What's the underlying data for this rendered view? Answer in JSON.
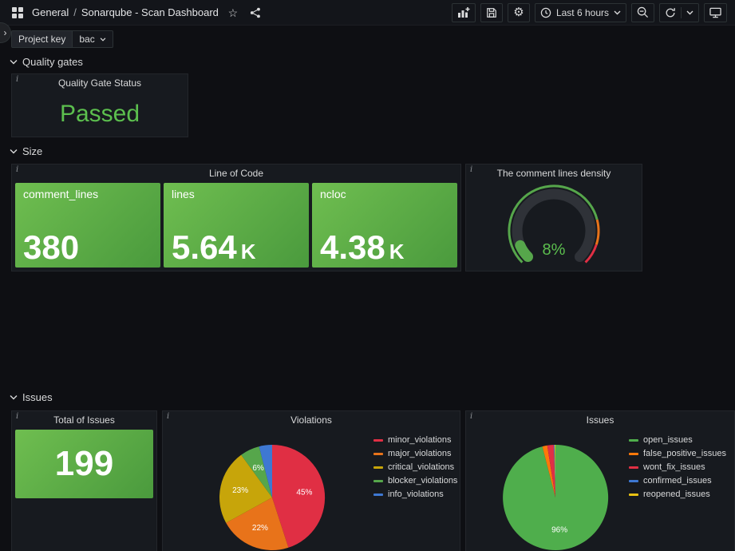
{
  "nav": {
    "folder": "General",
    "separator": "/",
    "title": "Sonarqube - Scan Dashboard",
    "time_range_label": "Last 6 hours"
  },
  "icons": {
    "star": "☆",
    "gear": "⚙",
    "sidebar_toggle": "›",
    "info": "i"
  },
  "variables": {
    "label": "Project key",
    "value": "bac"
  },
  "sections": {
    "quality_gates": "Quality gates",
    "size": "Size",
    "issues": "Issues"
  },
  "colors": {
    "stat_gradient": [
      "#6fbe50",
      "#4a9a3d"
    ],
    "green_text": "#5CBF4E"
  },
  "panels": {
    "quality_gate": {
      "title": "Quality Gate Status",
      "value": "Passed",
      "value_style": "color:#5CBF4E"
    },
    "line_of_code": {
      "title": "Line of Code",
      "stats": [
        {
          "label": "comment_lines",
          "value": "380",
          "suffix": ""
        },
        {
          "label": "lines",
          "value": "5.64",
          "suffix": "K"
        },
        {
          "label": "ncloc",
          "value": "4.38",
          "suffix": "K"
        }
      ]
    },
    "comment_density": {
      "title": "The comment lines density",
      "value": "8%",
      "value_style": "color:#5CBF4E",
      "gauge": {
        "value": 8,
        "min": 0,
        "max": 100,
        "track_color": "#2f3238",
        "value_color": "#56A64B",
        "thresholds": [
          {
            "from_pct": 0,
            "color": "#56A64B"
          },
          {
            "from_pct": 78,
            "color": "#E8731A"
          },
          {
            "from_pct": 90,
            "color": "#E02F44"
          }
        ]
      }
    },
    "total_issues": {
      "title": "Total of Issues",
      "value": "199"
    },
    "violations": {
      "title": "Violations",
      "chart_data": {
        "type": "pie",
        "legend_position": "right",
        "slices": [
          {
            "name": "minor_violations",
            "value": 45,
            "color": "#E02F44",
            "label": "45%"
          },
          {
            "name": "major_violations",
            "value": 22,
            "color": "#E8731A",
            "label": "22%"
          },
          {
            "name": "critical_violations",
            "value": 23,
            "color": "#C7A50A",
            "label": "23%"
          },
          {
            "name": "blocker_violations",
            "value": 6,
            "color": "#56A64B",
            "label": "6%"
          },
          {
            "name": "info_violations",
            "value": 4,
            "color": "#3E78D2",
            "label": ""
          }
        ]
      }
    },
    "issues": {
      "title": "Issues",
      "chart_data": {
        "type": "pie",
        "legend_position": "right",
        "slices": [
          {
            "name": "open_issues",
            "value": 96,
            "color": "#4FAE4C",
            "label": "96%"
          },
          {
            "name": "false_positive_issues",
            "value": 1.5,
            "color": "#FF780A",
            "label": ""
          },
          {
            "name": "wont_fix_issues",
            "value": 2,
            "color": "#E02F44",
            "label": ""
          },
          {
            "name": "confirmed_issues",
            "value": 0.25,
            "color": "#3E78D2",
            "label": ""
          },
          {
            "name": "reopened_issues",
            "value": 0.25,
            "color": "#E8C113",
            "label": ""
          }
        ]
      }
    }
  }
}
